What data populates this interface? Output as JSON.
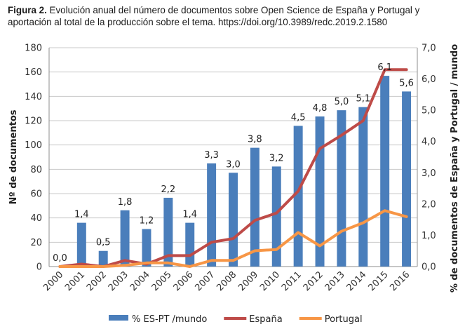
{
  "caption": {
    "label": "Figura 2.",
    "text": "Evolución anual del número de documentos sobre Open Science de España y Portugal y aportación al total de la producción sobre el tema. https://doi.org/10.3989/redc.2019.2.1580"
  },
  "chart_data": {
    "type": "bar",
    "categories": [
      "2000",
      "2001",
      "2002",
      "2003",
      "2004",
      "2005",
      "2006",
      "2007",
      "2008",
      "2009",
      "2010",
      "2011",
      "2012",
      "2013",
      "2014",
      "2015",
      "2016"
    ],
    "ylabel": "Nº de documentos",
    "ylabel_right": "% de documentos de España  y Portugal / mundo",
    "ylim": [
      0,
      180
    ],
    "ylim_right": [
      0,
      7
    ],
    "y_ticks": [
      "0",
      "20",
      "40",
      "60",
      "80",
      "100",
      "120",
      "140",
      "160",
      "180"
    ],
    "y_right_ticks": [
      "0,0",
      "1,0",
      "2,0",
      "3,0",
      "4,0",
      "5,0",
      "6,0",
      "7,0"
    ],
    "grid": true,
    "legend_position": "bottom",
    "series": [
      {
        "name": "% ES-PT /mundo",
        "kind": "bar",
        "axis": "right",
        "color": "#4a7ebb",
        "values": [
          0.0,
          1.4,
          0.5,
          1.8,
          1.2,
          2.2,
          1.4,
          3.3,
          3.0,
          3.8,
          3.2,
          4.5,
          4.8,
          5.0,
          5.1,
          6.1,
          5.6
        ],
        "data_labels": [
          "0,0",
          "1,4",
          "0,5",
          "1,8",
          "1,2",
          "2,2",
          "1,4",
          "3,3",
          "3,0",
          "3,8",
          "3,2",
          "4,5",
          "4,8",
          "5,0",
          "5,1",
          "6,1",
          "5,6"
        ]
      },
      {
        "name": "España",
        "kind": "line",
        "axis": "left",
        "color": "#be4b48",
        "values": [
          0,
          2,
          0,
          5,
          2,
          9,
          9,
          20,
          23,
          38,
          44,
          62,
          97,
          108,
          120,
          162,
          162
        ]
      },
      {
        "name": "Portugal",
        "kind": "line",
        "axis": "left",
        "color": "#f79646",
        "values": [
          0,
          0,
          0,
          1,
          3,
          3,
          0,
          5,
          5,
          13,
          14,
          28,
          17,
          29,
          36,
          46,
          41
        ]
      }
    ]
  }
}
